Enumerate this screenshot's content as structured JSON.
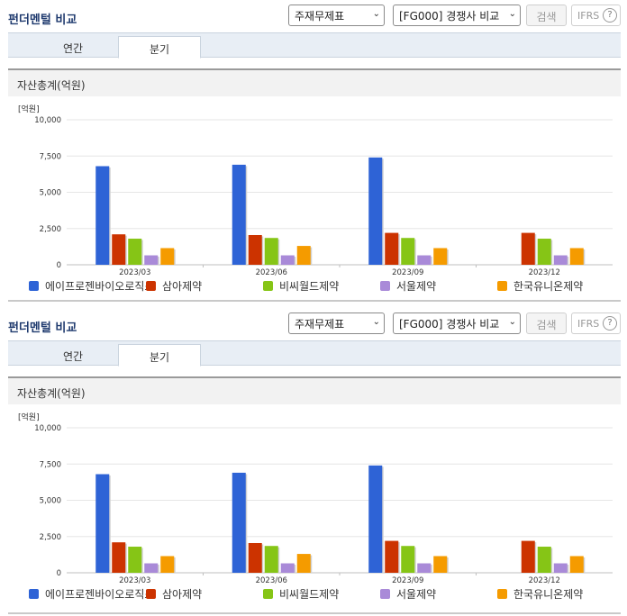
{
  "panels": [
    {
      "title": "펀더멘털 비교",
      "select_statement": "주재무제표",
      "select_group": "[FG000] 경쟁사 비교",
      "search_label": "검색",
      "ifrs_label": "IFRS",
      "help_label": "?",
      "tabs": [
        {
          "label": "연간"
        },
        {
          "label": "분기"
        }
      ],
      "active_tab": 1,
      "section_title": "자산총계(억원)",
      "unit_label": "[억원]",
      "chart_data": {
        "type": "bar",
        "categories": [
          "2023/03",
          "2023/06",
          "2023/09",
          "2023/12"
        ],
        "ylim": [
          0,
          10000
        ],
        "yticks": [
          "10,000",
          "7,500",
          "5,000",
          "2,500",
          "0"
        ],
        "series": [
          {
            "name": "에이프로젠바이오로직스",
            "color": "#2e63d6",
            "values": [
              6800,
              6900,
              7400,
              null
            ]
          },
          {
            "name": "삼아제약",
            "color": "#cc3300",
            "values": [
              2100,
              2050,
              2200,
              2200
            ]
          },
          {
            "name": "비씨월드제약",
            "color": "#86c516",
            "values": [
              1800,
              1850,
              1850,
              1800
            ]
          },
          {
            "name": "서울제약",
            "color": "#a98ad8",
            "values": [
              650,
              650,
              650,
              650
            ]
          },
          {
            "name": "한국유니온제약",
            "color": "#f59b00",
            "values": [
              1150,
              1300,
              1150,
              1150
            ]
          }
        ]
      }
    },
    {
      "title": "펀더멘털 비교",
      "select_statement": "주재무제표",
      "select_group": "[FG000] 경쟁사 비교",
      "search_label": "검색",
      "ifrs_label": "IFRS",
      "help_label": "?",
      "tabs": [
        {
          "label": "연간"
        },
        {
          "label": "분기"
        }
      ],
      "active_tab": 1,
      "section_title": "자산총계(억원)",
      "unit_label": "[억원]",
      "chart_data": {
        "type": "bar",
        "categories": [
          "2023/03",
          "2023/06",
          "2023/09",
          "2023/12"
        ],
        "ylim": [
          0,
          10000
        ],
        "yticks": [
          "10,000",
          "7,500",
          "5,000",
          "2,500",
          "0"
        ],
        "series": [
          {
            "name": "에이프로젠바이오로직스",
            "color": "#2e63d6",
            "values": [
              6800,
              6900,
              7400,
              null
            ]
          },
          {
            "name": "삼아제약",
            "color": "#cc3300",
            "values": [
              2100,
              2050,
              2200,
              2200
            ]
          },
          {
            "name": "비씨월드제약",
            "color": "#86c516",
            "values": [
              1800,
              1850,
              1850,
              1800
            ]
          },
          {
            "name": "서울제약",
            "color": "#a98ad8",
            "values": [
              650,
              650,
              650,
              650
            ]
          },
          {
            "name": "한국유니온제약",
            "color": "#f59b00",
            "values": [
              1150,
              1300,
              1150,
              1150
            ]
          }
        ]
      }
    }
  ]
}
